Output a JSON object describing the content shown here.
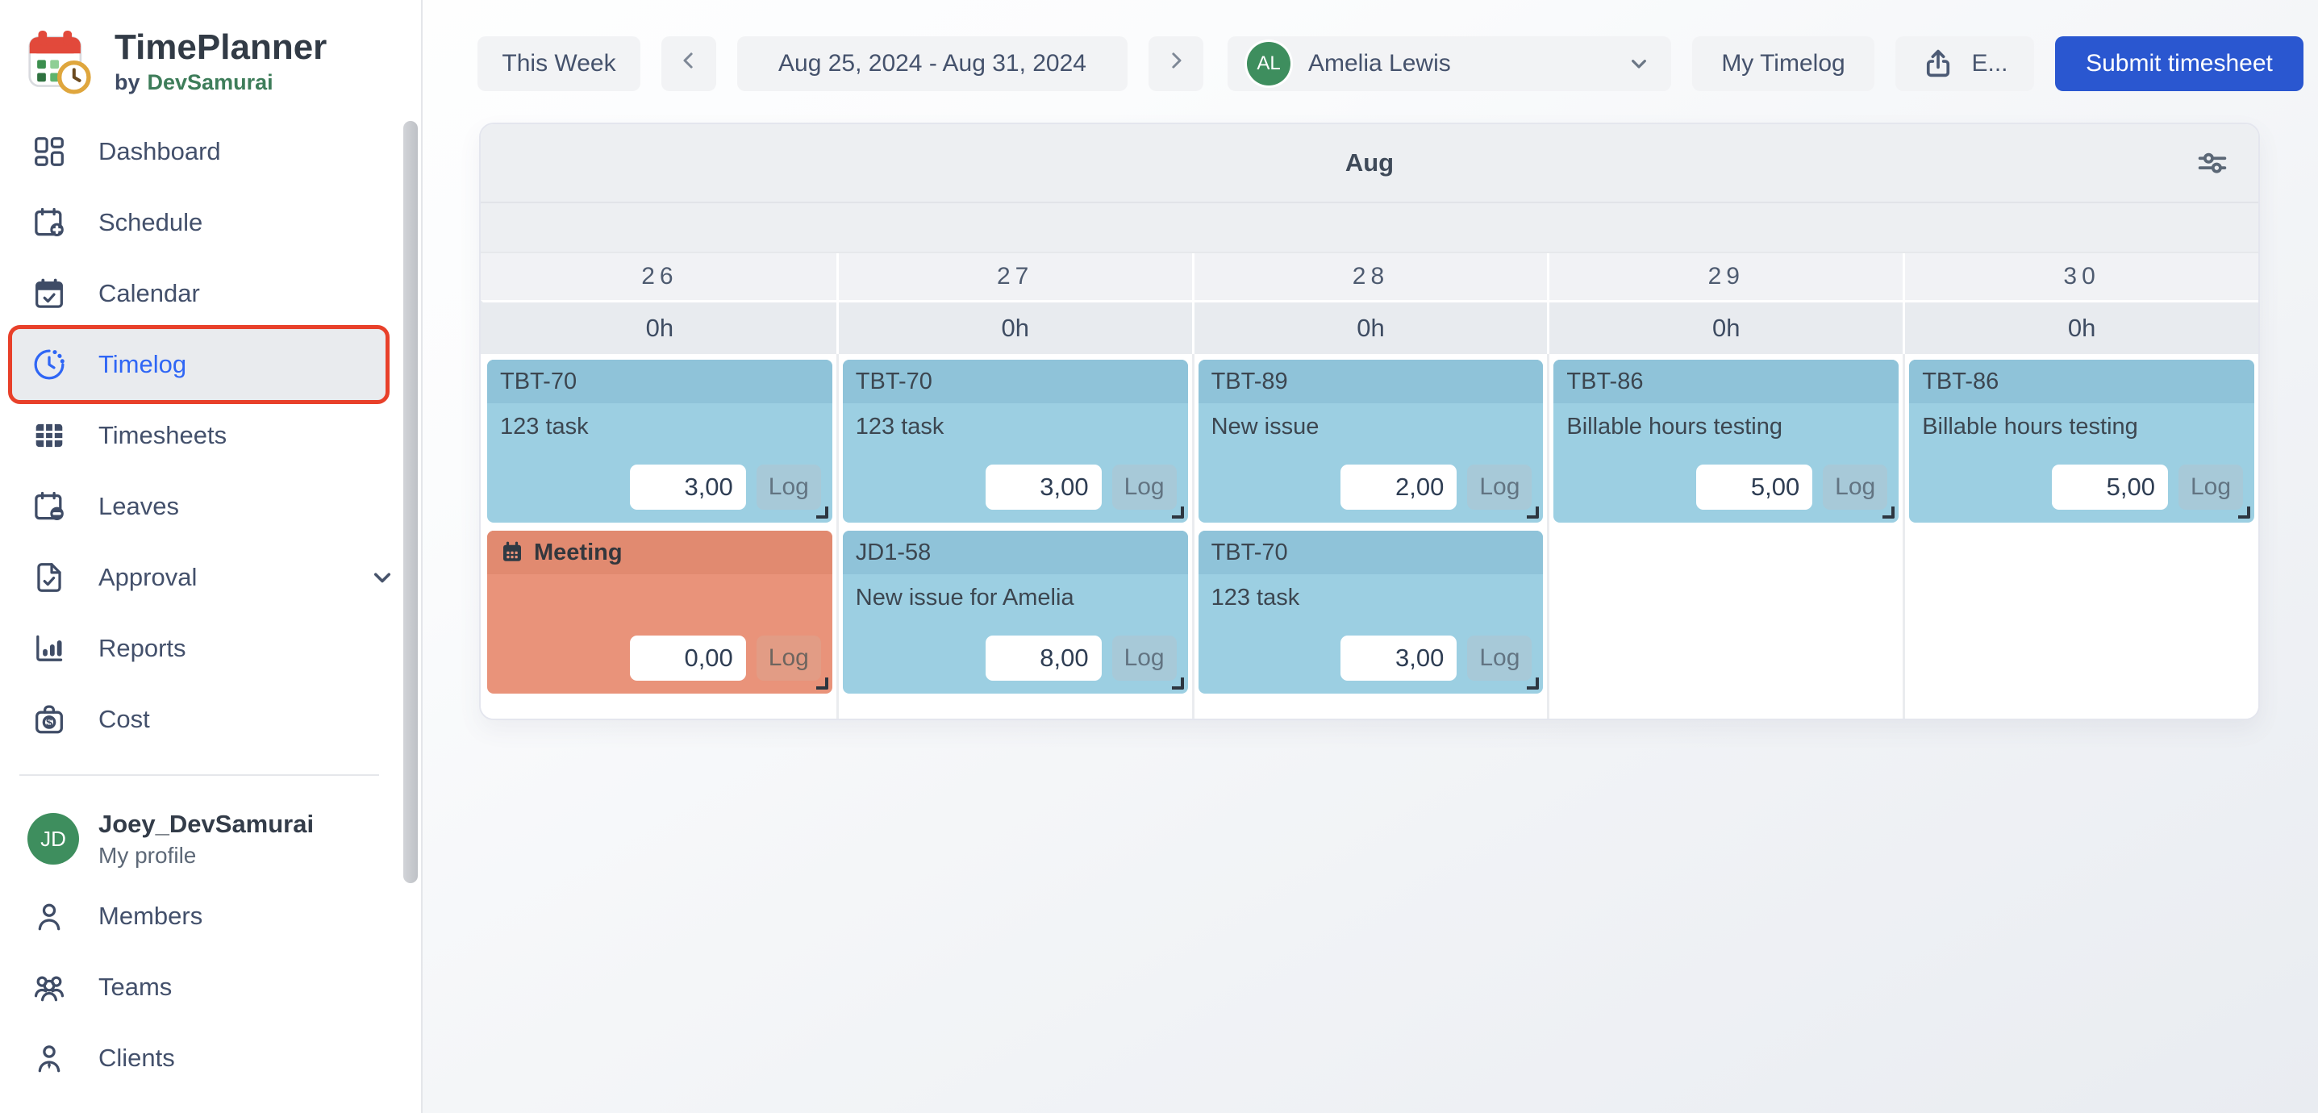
{
  "app": {
    "title": "TimePlanner",
    "byline_prefix": "by",
    "byline_brand": "DevSamurai"
  },
  "sidebar": {
    "nav": [
      {
        "label": "Dashboard",
        "icon": "dashboard-icon"
      },
      {
        "label": "Schedule",
        "icon": "schedule-icon"
      },
      {
        "label": "Calendar",
        "icon": "calendar-icon"
      },
      {
        "label": "Timelog",
        "icon": "timelog-icon",
        "active": true,
        "annotated": true
      },
      {
        "label": "Timesheets",
        "icon": "timesheets-icon"
      },
      {
        "label": "Leaves",
        "icon": "leaves-icon"
      },
      {
        "label": "Approval",
        "icon": "approval-icon",
        "chevron": true
      },
      {
        "label": "Reports",
        "icon": "reports-icon"
      },
      {
        "label": "Cost",
        "icon": "cost-icon"
      }
    ],
    "profile": {
      "initials": "JD",
      "name": "Joey_DevSamurai",
      "subtitle": "My profile"
    },
    "secondary": [
      {
        "label": "Members",
        "icon": "members-icon"
      },
      {
        "label": "Teams",
        "icon": "teams-icon"
      },
      {
        "label": "Clients",
        "icon": "clients-icon"
      }
    ]
  },
  "toolbar": {
    "this_week_label": "This Week",
    "date_range": "Aug 25, 2024 - Aug 31, 2024",
    "user_select": {
      "initials": "AL",
      "name": "Amelia Lewis"
    },
    "my_timelog_label": "My Timelog",
    "export_label": "E...",
    "submit_label": "Submit timesheet"
  },
  "calendar": {
    "month_label": "Aug",
    "days": [
      {
        "day": "26",
        "hours": "0h",
        "cards": [
          {
            "type": "task",
            "key": "TBT-70",
            "summary": "123 task",
            "value": "3,00",
            "log_label": "Log"
          },
          {
            "type": "meeting",
            "title": "Meeting",
            "value": "0,00",
            "log_label": "Log"
          }
        ]
      },
      {
        "day": "27",
        "hours": "0h",
        "cards": [
          {
            "type": "task",
            "key": "TBT-70",
            "summary": "123 task",
            "value": "3,00",
            "log_label": "Log"
          },
          {
            "type": "task",
            "key": "JD1-58",
            "summary": "New issue for Amelia",
            "value": "8,00",
            "log_label": "Log"
          }
        ]
      },
      {
        "day": "28",
        "hours": "0h",
        "cards": [
          {
            "type": "task",
            "key": "TBT-89",
            "summary": "New issue",
            "value": "2,00",
            "log_label": "Log"
          },
          {
            "type": "task",
            "key": "TBT-70",
            "summary": "123 task",
            "value": "3,00",
            "log_label": "Log"
          }
        ]
      },
      {
        "day": "29",
        "hours": "0h",
        "cards": [
          {
            "type": "task",
            "key": "TBT-86",
            "summary": "Billable hours testing",
            "value": "5,00",
            "log_label": "Log"
          }
        ]
      },
      {
        "day": "30",
        "hours": "0h",
        "cards": [
          {
            "type": "task",
            "key": "TBT-86",
            "summary": "Billable hours testing",
            "value": "5,00",
            "log_label": "Log"
          }
        ]
      }
    ]
  },
  "colors": {
    "accent_blue": "#2a57d0",
    "active_link": "#2f66f5",
    "annotation_red": "#e8402a",
    "card_blue_body": "#9ccfe2",
    "card_blue_header": "#8fc3d9",
    "card_orange_body": "#e9937a",
    "card_orange_header": "#e18a70",
    "avatar_green": "#3e8e5e"
  }
}
